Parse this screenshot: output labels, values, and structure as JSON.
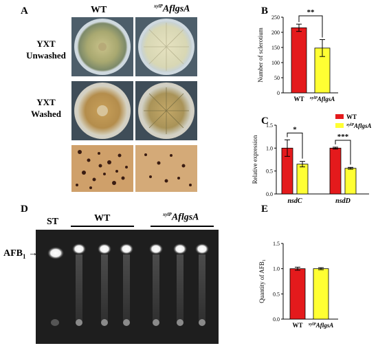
{
  "panels": {
    "A": "A",
    "B": "B",
    "C": "C",
    "D": "D",
    "E": "E"
  },
  "panel_a": {
    "col_wt": "WT",
    "col_mut_sup": "xylP",
    "col_mut_main": "AflgsA",
    "row1": [
      "YXT",
      "Unwashed"
    ],
    "row2": [
      "YXT",
      "Washed"
    ]
  },
  "panel_d": {
    "st_label": "ST",
    "wt_label": "WT",
    "mut_sup": "xylP",
    "mut_main": "AflgsA",
    "afb_label": "AFB",
    "afb_sub": "1"
  },
  "colors": {
    "wt": "#e41a1c",
    "mutant": "#ffff33",
    "tlc_bg": "#1e1e1e"
  },
  "chart_data": [
    {
      "panel": "B",
      "type": "bar",
      "categories": [
        "WT",
        "xylPAflgsA"
      ],
      "category_labels": [
        {
          "sup": "",
          "main": "WT"
        },
        {
          "sup": "xylP",
          "main": "AflgsA"
        }
      ],
      "values": [
        215,
        148
      ],
      "errors": [
        12,
        28
      ],
      "ylabel": "Number of sclerotium",
      "ylim": [
        0,
        250
      ],
      "yticks": [
        0,
        50,
        100,
        150,
        200,
        250
      ],
      "significance": "**",
      "bar_colors": [
        "#e41a1c",
        "#ffff33"
      ]
    },
    {
      "panel": "C",
      "type": "bar",
      "categories": [
        "nsdC",
        "nsdD"
      ],
      "series": [
        {
          "name": "WT",
          "values": [
            1.0,
            1.0
          ],
          "errors": [
            0.18,
            0.02
          ]
        },
        {
          "name": "xylPAflgsA",
          "values": [
            0.65,
            0.56
          ],
          "errors": [
            0.06,
            0.02
          ]
        }
      ],
      "legend": [
        {
          "sup": "",
          "main": "WT"
        },
        {
          "sup": "xylP",
          "main": "AflgsA"
        }
      ],
      "ylabel": "Relative expression",
      "ylim": [
        0,
        1.5
      ],
      "yticks": [
        "0.0",
        "0.5",
        "1.0",
        "1.5"
      ],
      "significance": [
        "*",
        "***"
      ],
      "legend_position": "top-right"
    },
    {
      "panel": "E",
      "type": "bar",
      "categories": [
        "WT",
        "xylPAflgsA"
      ],
      "category_labels": [
        {
          "sup": "",
          "main": "WT"
        },
        {
          "sup": "xylP",
          "main": "AflgsA"
        }
      ],
      "values": [
        1.0,
        1.0
      ],
      "errors": [
        0.03,
        0.02
      ],
      "ylabel_main": "Quantity of AFB",
      "ylabel_sub": "1",
      "ylim": [
        0,
        1.5
      ],
      "yticks": [
        "0.0",
        "0.5",
        "1.0",
        "1.5"
      ],
      "bar_colors": [
        "#e41a1c",
        "#ffff33"
      ]
    }
  ]
}
